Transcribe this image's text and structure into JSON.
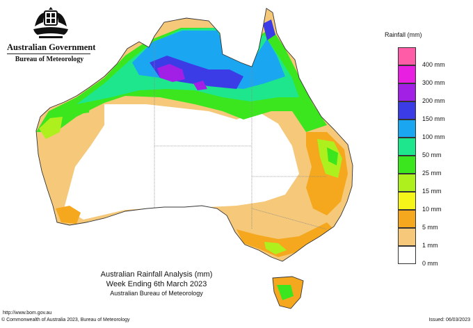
{
  "header": {
    "government": "Australian Government",
    "bureau": "Bureau of Meteorology",
    "crest_icon": "coat-of-arms-icon"
  },
  "legend": {
    "title": "Rainfall (mm)",
    "items": [
      {
        "label": "400 mm",
        "color": "#ff5ca8"
      },
      {
        "label": "300 mm",
        "color": "#e81ee0"
      },
      {
        "label": "200 mm",
        "color": "#a21fe6"
      },
      {
        "label": "150 mm",
        "color": "#3c3ce6"
      },
      {
        "label": "100 mm",
        "color": "#1aa6f0"
      },
      {
        "label": "50 mm",
        "color": "#1ee68c"
      },
      {
        "label": "25 mm",
        "color": "#3ce61e"
      },
      {
        "label": "15 mm",
        "color": "#aef01e"
      },
      {
        "label": "10 mm",
        "color": "#f5f51a"
      },
      {
        "label": "5 mm",
        "color": "#f5a81e"
      },
      {
        "label": "1 mm",
        "color": "#f5c87a"
      },
      {
        "label": "0 mm",
        "color": "#ffffff"
      }
    ]
  },
  "caption": {
    "line1": "Australian Rainfall Analysis (mm)",
    "line2": "Week Ending 6th March 2023",
    "line3": "Australian Bureau of Meteorology"
  },
  "footer": {
    "url": "http://www.bom.gov.au",
    "copyright": "© Commonwealth of Australia 2023, Bureau of Meteorology",
    "issued": "Issued: 06/03/2023"
  }
}
